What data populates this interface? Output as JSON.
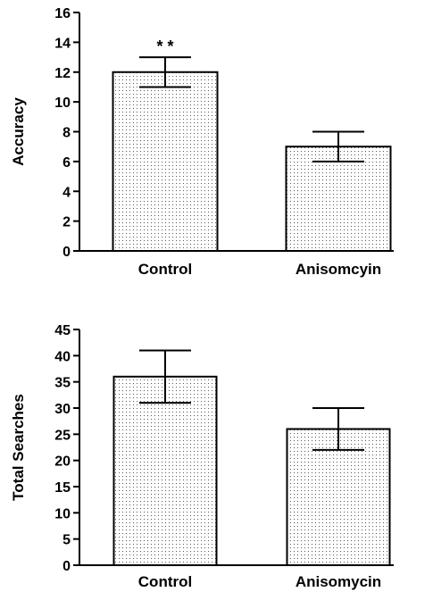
{
  "chart_data": [
    {
      "type": "bar",
      "title": "",
      "xlabel": "",
      "ylabel": "Accuracy",
      "ylim": [
        0,
        16
      ],
      "yticks": [
        0,
        2,
        4,
        6,
        8,
        10,
        12,
        14,
        16
      ],
      "categories": [
        "Control",
        "Anisomcyin"
      ],
      "values": [
        12,
        7
      ],
      "error_low": [
        11,
        6
      ],
      "error_high": [
        13,
        8
      ],
      "annotations": [
        {
          "category": "Control",
          "text": "* *"
        }
      ],
      "grid": false,
      "bar_fill": "dotted"
    },
    {
      "type": "bar",
      "title": "",
      "xlabel": "",
      "ylabel": "Total Searches",
      "ylim": [
        0,
        45
      ],
      "yticks": [
        0,
        5,
        10,
        15,
        20,
        25,
        30,
        35,
        40,
        45
      ],
      "categories": [
        "Control",
        "Anisomycin"
      ],
      "values": [
        36,
        26
      ],
      "error_low": [
        31,
        22
      ],
      "error_high": [
        41,
        30
      ],
      "annotations": [],
      "grid": false,
      "bar_fill": "dotted"
    }
  ]
}
